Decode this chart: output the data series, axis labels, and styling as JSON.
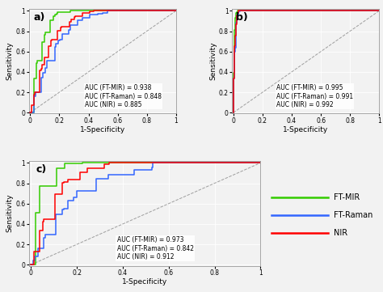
{
  "colors": {
    "ftmir": "#33CC00",
    "ftraman": "#3366FF",
    "nir": "#FF0000"
  },
  "panel_a": {
    "auc_ftmir": 0.938,
    "auc_ftraman": 0.848,
    "auc_nir": 0.885
  },
  "panel_b": {
    "auc_ftmir": 0.995,
    "auc_ftraman": 0.991,
    "auc_nir": 0.992
  },
  "panel_c": {
    "auc_ftmir": 0.973,
    "auc_ftraman": 0.842,
    "auc_nir": 0.912
  },
  "legend_labels": [
    "FT-MIR",
    "FT-Raman",
    "NIR"
  ],
  "xlabel": "1-Specificity",
  "ylabel": "Sensitivity",
  "background_color": "#f2f2f2",
  "grid_color": "#ffffff",
  "annotation_fontsize": 5.5,
  "label_fontsize": 6.5,
  "tick_fontsize": 5.5,
  "panel_label_fontsize": 9
}
